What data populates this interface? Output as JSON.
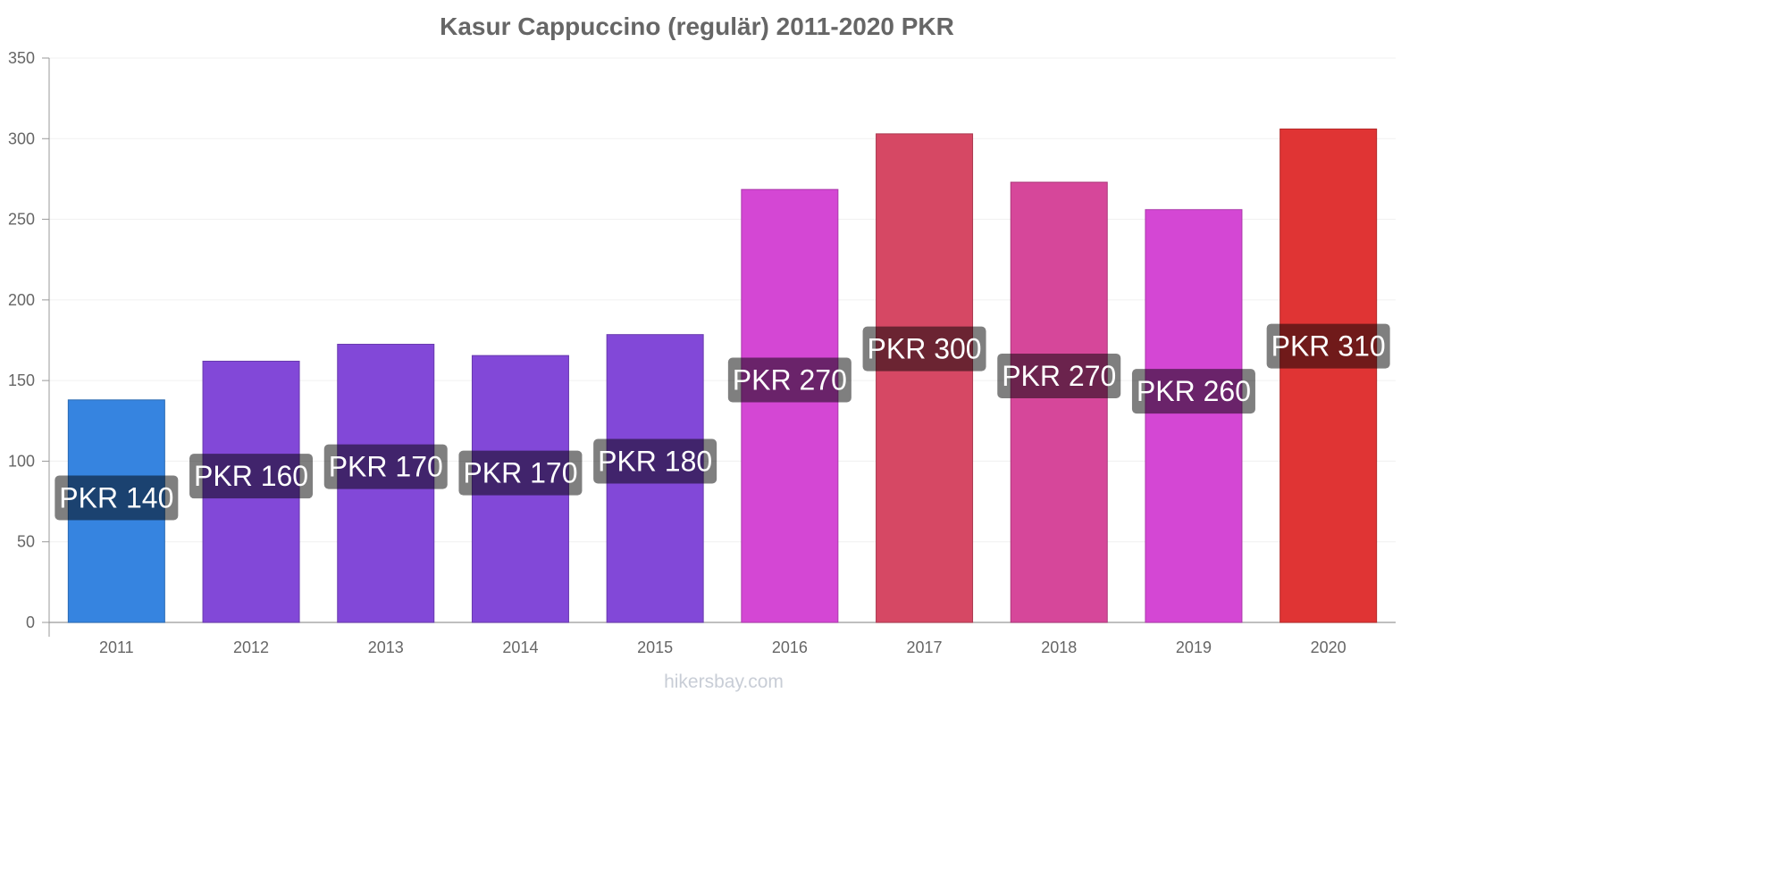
{
  "chart_data": {
    "type": "bar",
    "title": "Kasur Cappuccino (regulär) 2011-2020 PKR",
    "categories": [
      "2011",
      "2012",
      "2013",
      "2014",
      "2015",
      "2016",
      "2017",
      "2018",
      "2019",
      "2020"
    ],
    "values": [
      138,
      162,
      172.5,
      165.5,
      178.5,
      268.5,
      303,
      273,
      256,
      306
    ],
    "data_labels": [
      "PKR 140",
      "PKR 160",
      "PKR 170",
      "PKR 170",
      "PKR 180",
      "PKR 270",
      "PKR 300",
      "PKR 270",
      "PKR 260",
      "PKR 310"
    ],
    "colors": [
      "#3684e0",
      "#8248d8",
      "#8248d8",
      "#8248d8",
      "#8248d8",
      "#d447d4",
      "#d64864",
      "#d6479a",
      "#d447d4",
      "#e03434"
    ],
    "ylim": [
      0,
      350
    ],
    "yticks": [
      0,
      50,
      100,
      150,
      200,
      250,
      300,
      350
    ],
    "xlabel": "",
    "ylabel": "",
    "grid": true,
    "legend": "none"
  },
  "watermark": "hikersbay.com"
}
